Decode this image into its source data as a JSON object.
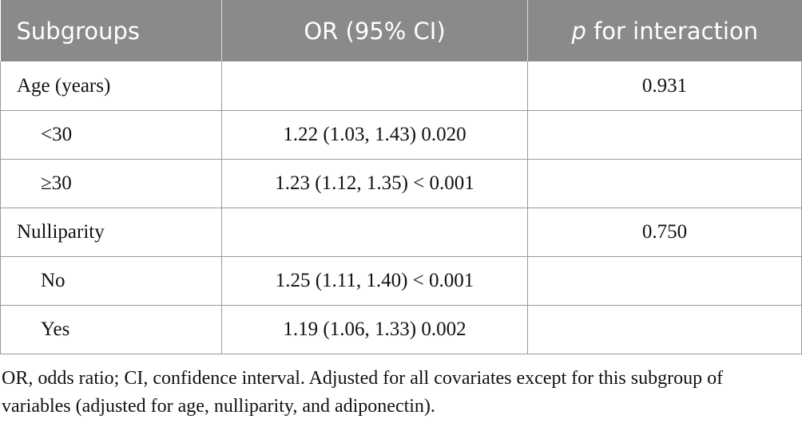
{
  "table": {
    "headers": {
      "subgroups": "Subgroups",
      "or": "OR (95% CI)",
      "p_prefix": "p",
      "p_suffix": " for interaction"
    },
    "rows": [
      {
        "label": "Age (years)",
        "or": "",
        "p": "0.931"
      },
      {
        "label": "<30",
        "or": "1.22 (1.03, 1.43) 0.020",
        "p": ""
      },
      {
        "label": "≥30",
        "or": "1.23 (1.12, 1.35) < 0.001",
        "p": ""
      },
      {
        "label": "Nulliparity",
        "or": "",
        "p": "0.750"
      },
      {
        "label": "No",
        "or": "1.25 (1.11, 1.40) < 0.001",
        "p": ""
      },
      {
        "label": "Yes",
        "or": "1.19 (1.06, 1.33) 0.002",
        "p": ""
      }
    ]
  },
  "footnote": "OR, odds ratio; CI, confidence interval. Adjusted for all covariates except for this subgroup of variables (adjusted for age, nulliparity, and adiponectin).",
  "colors": {
    "header_bg": "#8a8a8a",
    "header_text": "#ffffff",
    "border": "#9a9a9a"
  }
}
